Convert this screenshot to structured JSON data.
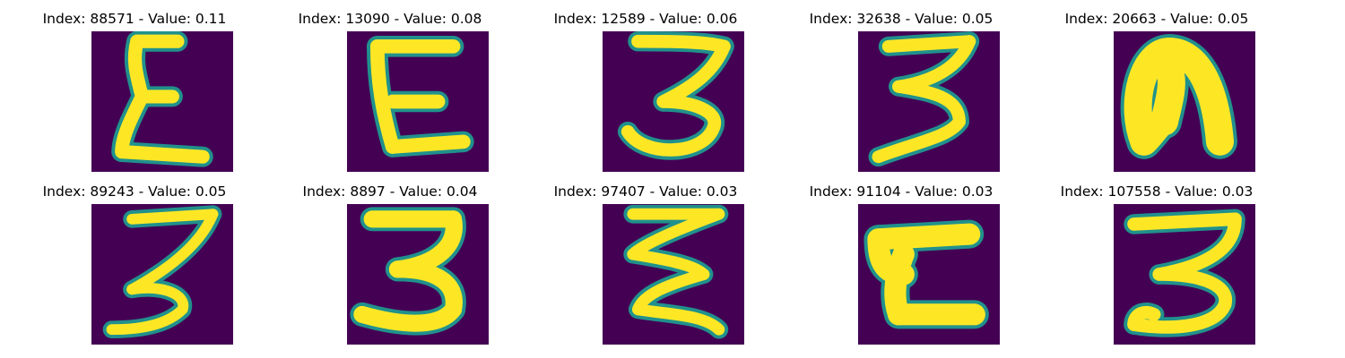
{
  "chart_data": {
    "type": "image-grid",
    "colormap": "viridis",
    "colors": {
      "background": "#440154",
      "mid": "#21918c",
      "high": "#fde725"
    },
    "panels": [
      {
        "index_label": "Index: 88571",
        "value_label": "Value: 0.11",
        "index": 88571,
        "value": 0.11,
        "glyph": "epsilon-tall"
      },
      {
        "index_label": "Index: 13090",
        "value_label": "Value: 0.08",
        "index": 13090,
        "value": 0.08,
        "glyph": "E-upright"
      },
      {
        "index_label": "Index: 12589",
        "value_label": "Value: 0.06",
        "index": 12589,
        "value": 0.06,
        "glyph": "three-round"
      },
      {
        "index_label": "Index: 32638",
        "value_label": "Value: 0.05",
        "index": 32638,
        "value": 0.05,
        "glyph": "three-sharp"
      },
      {
        "index_label": "Index: 20663",
        "value_label": "Value: 0.05",
        "index": 20663,
        "value": 0.05,
        "glyph": "n-arch"
      },
      {
        "index_label": "Index: 89243",
        "value_label": "Value: 0.05",
        "index": 89243,
        "value": 0.05,
        "glyph": "three-slanted"
      },
      {
        "index_label": "Index: 8897",
        "value_label": "Value: 0.04",
        "index": 8897,
        "value": 0.04,
        "glyph": "three-bold"
      },
      {
        "index_label": "Index: 97407",
        "value_label": "Value: 0.03",
        "index": 97407,
        "value": 0.03,
        "glyph": "zigzag"
      },
      {
        "index_label": "Index: 91104",
        "value_label": "Value: 0.03",
        "index": 91104,
        "value": 0.03,
        "glyph": "C-box"
      },
      {
        "index_label": "Index: 107558",
        "value_label": "Value: 0.03",
        "index": 107558,
        "value": 0.03,
        "glyph": "three-loop"
      }
    ]
  }
}
